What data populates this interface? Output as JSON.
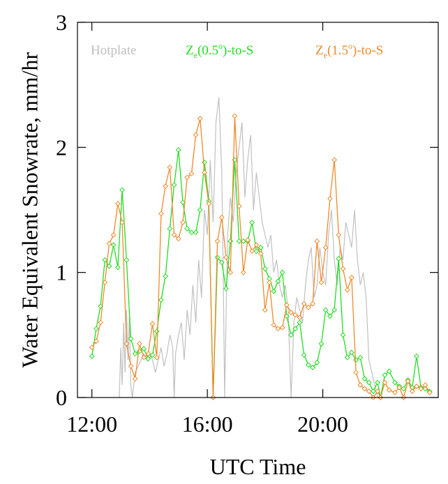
{
  "chart_data": {
    "type": "line",
    "xlabel": "UTC Time",
    "ylabel": "Water Equivalent Snowrate, mm/hr",
    "xlim": [
      11.5,
      24.0
    ],
    "ylim": [
      0,
      3
    ],
    "x_ticks": [
      {
        "value": 12,
        "label": "12:00"
      },
      {
        "value": 16,
        "label": "16:00"
      },
      {
        "value": 20,
        "label": "20:00"
      }
    ],
    "y_ticks": [
      {
        "value": 0,
        "label": "0"
      },
      {
        "value": 1,
        "label": "1"
      },
      {
        "value": 2,
        "label": "2"
      },
      {
        "value": 3,
        "label": "3"
      }
    ],
    "legend_placement": "top",
    "grid": false,
    "series": [
      {
        "name": "Hotplate",
        "color": "#c0c0c0",
        "marker": "none",
        "x": [
          12.95,
          13.0,
          13.05,
          13.1,
          13.15,
          13.2,
          13.25,
          13.3,
          13.35,
          13.4,
          13.5,
          13.6,
          13.7,
          13.8,
          13.9,
          14.0,
          14.1,
          14.2,
          14.3,
          14.4,
          14.5,
          14.6,
          14.7,
          14.8,
          14.85,
          14.9,
          15.0,
          15.1,
          15.2,
          15.3,
          15.4,
          15.5,
          15.6,
          15.7,
          15.8,
          15.9,
          16.0,
          16.1,
          16.2,
          16.3,
          16.4,
          16.5,
          16.55,
          16.6,
          16.7,
          16.8,
          16.9,
          17.0,
          17.1,
          17.2,
          17.3,
          17.4,
          17.5,
          17.6,
          17.7,
          17.8,
          17.9,
          18.0,
          18.1,
          18.2,
          18.3,
          18.4,
          18.5,
          18.6,
          18.7,
          18.8,
          18.9,
          19.0,
          19.1,
          19.2,
          19.3,
          19.4,
          19.5,
          19.6,
          19.7,
          19.8,
          19.9,
          20.0,
          20.1,
          20.2,
          20.3,
          20.4,
          20.5,
          20.6,
          20.7,
          20.8,
          20.9,
          21.0,
          21.1,
          21.2,
          21.3,
          21.4,
          21.5,
          21.6,
          21.7,
          21.8,
          21.9,
          22.0
        ],
        "y": [
          0.0,
          0.4,
          0.1,
          0.6,
          0.2,
          0.7,
          0.3,
          0.65,
          0.1,
          0.0,
          0.2,
          0.25,
          0.3,
          0.35,
          0.3,
          0.35,
          0.3,
          0.2,
          0.3,
          0.4,
          0.25,
          0.35,
          0.5,
          0.4,
          0.0,
          0.35,
          0.5,
          0.6,
          0.3,
          0.7,
          0.5,
          0.9,
          0.6,
          1.1,
          0.8,
          1.5,
          1.3,
          1.9,
          1.4,
          2.2,
          2.4,
          1.8,
          1.0,
          0.0,
          1.3,
          1.6,
          1.4,
          1.8,
          2.0,
          2.2,
          1.6,
          1.9,
          2.1,
          1.5,
          1.8,
          1.6,
          1.4,
          1.3,
          1.2,
          1.3,
          1.0,
          1.1,
          0.9,
          0.8,
          0.9,
          0.7,
          0.0,
          0.6,
          0.8,
          0.7,
          0.6,
          0.9,
          1.1,
          1.2,
          0.8,
          0.9,
          1.2,
          1.0,
          0.9,
          1.3,
          1.5,
          1.1,
          0.9,
          1.2,
          1.1,
          1.4,
          1.3,
          1.2,
          1.5,
          1.1,
          0.9,
          1.0,
          0.8,
          0.3,
          0.2,
          0.1,
          0.0,
          0.0
        ]
      },
      {
        "name": "Z_e(0.5°)-to-S",
        "legend_parts": [
          "Z",
          "e",
          "(0.5",
          "o",
          ")-to-S"
        ],
        "color": "#22dd22",
        "marker": "diamond",
        "x": [
          12.0,
          12.15,
          12.3,
          12.45,
          12.6,
          12.75,
          12.9,
          13.05,
          13.2,
          13.35,
          13.5,
          13.65,
          13.8,
          13.95,
          14.1,
          14.25,
          14.4,
          14.55,
          14.7,
          14.85,
          15.0,
          15.15,
          15.3,
          15.45,
          15.6,
          15.75,
          15.9,
          16.05,
          16.2,
          16.35,
          16.5,
          16.65,
          16.8,
          16.95,
          17.1,
          17.25,
          17.4,
          17.55,
          17.7,
          17.85,
          18.0,
          18.15,
          18.3,
          18.45,
          18.6,
          18.75,
          18.9,
          19.05,
          19.2,
          19.35,
          19.5,
          19.65,
          19.8,
          19.95,
          20.1,
          20.25,
          20.4,
          20.55,
          20.7,
          20.85,
          21.0,
          21.15,
          21.3,
          21.45,
          21.6,
          21.75,
          21.9,
          22.0,
          22.15,
          22.3,
          22.5,
          22.65,
          22.8,
          22.95,
          23.1,
          23.25,
          23.4,
          23.55,
          23.7
        ],
        "y": [
          0.33,
          0.55,
          0.73,
          1.1,
          1.05,
          1.22,
          1.04,
          1.66,
          1.1,
          0.47,
          0.35,
          0.37,
          0.39,
          0.31,
          0.34,
          0.53,
          0.78,
          0.97,
          1.35,
          1.7,
          1.98,
          1.56,
          1.35,
          1.32,
          1.32,
          1.5,
          1.88,
          1.57,
          0.0,
          1.12,
          1.08,
          0.87,
          1.25,
          1.9,
          1.25,
          1.25,
          1.25,
          1.4,
          1.17,
          1.2,
          1.03,
          0.95,
          0.85,
          0.93,
          1.0,
          0.65,
          0.5,
          0.55,
          0.6,
          0.34,
          0.26,
          0.24,
          0.28,
          0.43,
          0.7,
          0.65,
          0.7,
          1.11,
          0.5,
          0.32,
          0.36,
          0.3,
          0.32,
          0.15,
          0.12,
          0.05,
          0.12,
          0.0,
          0.18,
          0.21,
          0.12,
          0.09,
          0.07,
          0.14,
          0.08,
          0.33,
          0.08,
          0.07,
          0.05
        ]
      },
      {
        "name": "Z_e(1.5°)-to-S",
        "legend_parts": [
          "Z",
          "e",
          "(1.5",
          "o",
          ")-to-S"
        ],
        "color": "#f0892a",
        "marker": "diamond",
        "x": [
          12.0,
          12.15,
          12.3,
          12.45,
          12.6,
          12.75,
          12.9,
          13.05,
          13.2,
          13.35,
          13.5,
          13.65,
          13.8,
          13.95,
          14.1,
          14.25,
          14.4,
          14.55,
          14.7,
          14.85,
          15.0,
          15.15,
          15.3,
          15.45,
          15.6,
          15.75,
          15.9,
          16.05,
          16.2,
          16.35,
          16.5,
          16.65,
          16.8,
          16.95,
          17.1,
          17.25,
          17.4,
          17.55,
          17.7,
          17.85,
          18.0,
          18.15,
          18.3,
          18.45,
          18.6,
          18.75,
          18.9,
          19.05,
          19.2,
          19.35,
          19.5,
          19.65,
          19.8,
          19.95,
          20.1,
          20.25,
          20.4,
          20.55,
          20.7,
          20.85,
          21.0,
          21.15,
          21.3,
          21.45,
          21.6,
          21.75,
          21.9,
          22.0,
          22.15,
          22.3,
          22.5,
          22.65,
          22.8,
          22.95,
          23.1,
          23.25,
          23.4,
          23.55,
          23.7
        ],
        "y": [
          0.4,
          0.45,
          0.6,
          0.92,
          1.23,
          1.3,
          1.55,
          1.4,
          0.43,
          0.25,
          0.15,
          0.43,
          0.32,
          0.35,
          0.59,
          0.32,
          1.47,
          1.69,
          1.84,
          1.3,
          1.27,
          1.4,
          1.76,
          1.79,
          2.1,
          2.23,
          1.8,
          1.55,
          0.0,
          1.25,
          1.44,
          1.12,
          1.0,
          2.25,
          1.53,
          1.0,
          1.26,
          1.17,
          1.22,
          1.15,
          0.7,
          0.92,
          0.58,
          0.55,
          0.56,
          0.74,
          0.68,
          0.66,
          0.64,
          0.75,
          0.72,
          0.75,
          1.25,
          0.92,
          1.2,
          1.59,
          1.9,
          1.3,
          1.03,
          0.86,
          0.96,
          0.2,
          0.1,
          0.07,
          0.05,
          0.0,
          0.05,
          0.0,
          0.12,
          0.06,
          0.04,
          0.08,
          0.0,
          0.13,
          0.05,
          0.09,
          0.07,
          0.1,
          0.04
        ]
      }
    ]
  }
}
